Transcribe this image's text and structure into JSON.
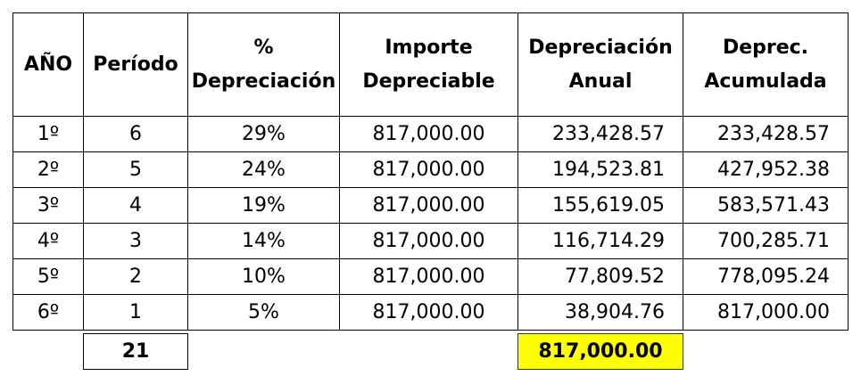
{
  "table": {
    "headers": {
      "year": "AÑO",
      "period": "Período",
      "pct_line1": "%",
      "pct_line2": "Depreciación",
      "amount_line1": "Importe",
      "amount_line2": "Depreciable",
      "annual_line1": "Depreciación",
      "annual_line2": "Anual",
      "accum_line1": "Deprec.",
      "accum_line2": "Acumulada"
    },
    "rows": [
      {
        "year": "1º",
        "period": "6",
        "pct": "29%",
        "amount": "817,000.00",
        "annual": "233,428.57",
        "accum": "233,428.57"
      },
      {
        "year": "2º",
        "period": "5",
        "pct": "24%",
        "amount": "817,000.00",
        "annual": "194,523.81",
        "accum": "427,952.38"
      },
      {
        "year": "3º",
        "period": "4",
        "pct": "19%",
        "amount": "817,000.00",
        "annual": "155,619.05",
        "accum": "583,571.43"
      },
      {
        "year": "4º",
        "period": "3",
        "pct": "14%",
        "amount": "817,000.00",
        "annual": "116,714.29",
        "accum": "700,285.71"
      },
      {
        "year": "5º",
        "period": "2",
        "pct": "10%",
        "amount": "817,000.00",
        "annual": "77,809.52",
        "accum": "778,095.24"
      },
      {
        "year": "6º",
        "period": "1",
        "pct": "5%",
        "amount": "817,000.00",
        "annual": "38,904.76",
        "accum": "817,000.00"
      }
    ],
    "totals": {
      "period_sum": "21",
      "annual_sum": "817,000.00"
    },
    "colors": {
      "highlight": "#ffff00",
      "border": "#000000"
    }
  }
}
